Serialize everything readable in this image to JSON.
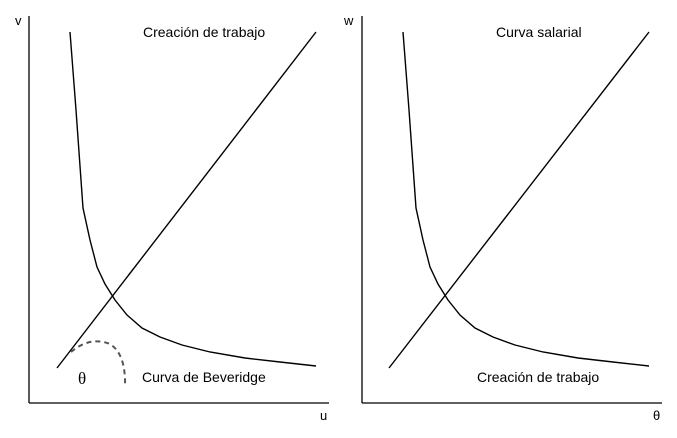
{
  "left_panel": {
    "y_axis_label": "v",
    "x_axis_label": "u",
    "upward_line_label": "Creación de trabajo",
    "downward_curve_label": "Curva de Beveridge",
    "angle_label": "θ"
  },
  "right_panel": {
    "y_axis_label": "w",
    "x_axis_label": "θ",
    "upward_line_label": "Curva salarial",
    "downward_curve_label": "Creación de trabajo"
  },
  "colors": {
    "lines": "#000000",
    "dashed_arc": "#555555",
    "background": "#ffffff"
  }
}
